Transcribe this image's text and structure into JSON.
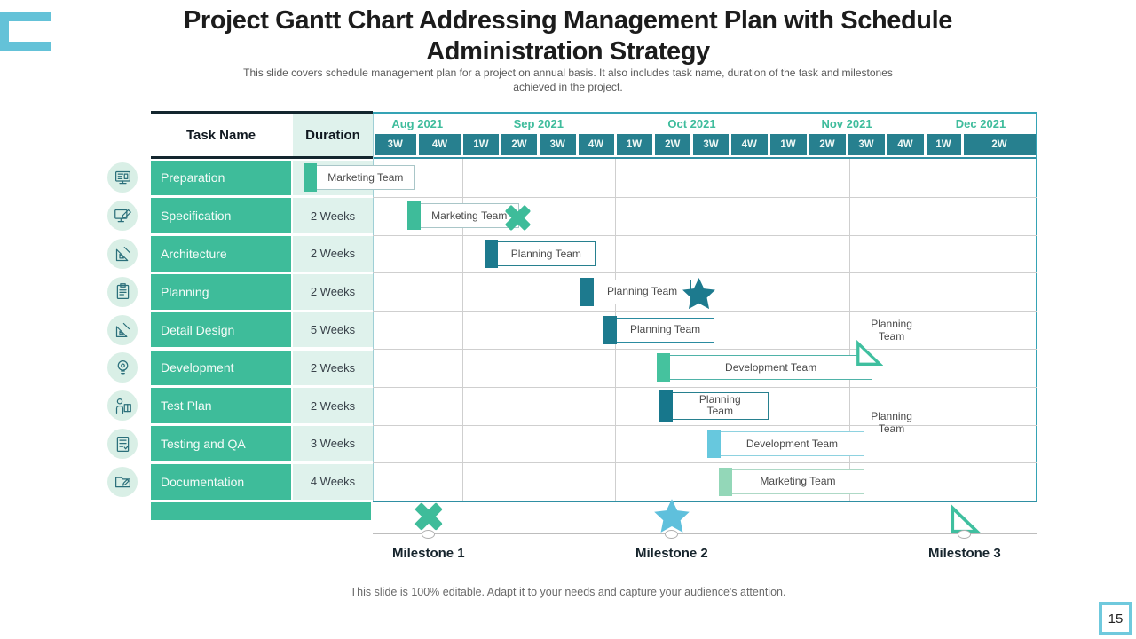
{
  "slide": {
    "title": "Project Gantt Chart Addressing Management Plan with Schedule Administration Strategy",
    "subtitle": "This slide covers schedule management plan for a project on annual basis. It also includes task name, duration of the task and milestones achieved in the project.",
    "footer_note": "This slide is 100% editable. Adapt it to your needs and capture your audience's attention.",
    "page_number": "15"
  },
  "table_headers": {
    "task": "Task Name",
    "duration": "Duration"
  },
  "chart_data": {
    "type": "gantt",
    "timeline_months": [
      {
        "label": "Aug 2021",
        "weeks": [
          "3W",
          "4W"
        ]
      },
      {
        "label": "Sep 2021",
        "weeks": [
          "1W",
          "2W",
          "3W",
          "4W"
        ]
      },
      {
        "label": "Oct 2021",
        "weeks": [
          "1W",
          "2W",
          "3W",
          "4W"
        ]
      },
      {
        "label": "Nov 2021",
        "weeks": [
          "1W",
          "2W",
          "3W",
          "4W"
        ]
      },
      {
        "label": "Dec 2021",
        "weeks": [
          "1W",
          "2W"
        ]
      }
    ],
    "tasks": [
      {
        "name": "Preparation",
        "duration": "",
        "icon": "blueprint-monitor-icon",
        "team": "Marketing Team",
        "start_week": -1.8,
        "end_week": 1.1,
        "block_color": "#3ebc9a",
        "border_color": "#a9c6c8"
      },
      {
        "name": "Specification",
        "duration": "2 Weeks",
        "icon": "monitor-pencil-icon",
        "team": "Marketing Team",
        "start_week": 0.9,
        "end_week": 3.8,
        "block_color": "#3ebc9a",
        "border_color": "#a9c6c8",
        "end_marker": {
          "icon": "cross-icon",
          "color": "#3ebc9a"
        }
      },
      {
        "name": "Architecture",
        "duration": "2 Weeks",
        "icon": "set-square-icon",
        "team": "Planning Team",
        "start_week": 2.9,
        "end_week": 5.8,
        "block_color": "#1d7a8e",
        "border_color": "#27808f"
      },
      {
        "name": "Planning",
        "duration": "2 Weeks",
        "icon": "clipboard-icon",
        "team": "Planning Team",
        "start_week": 5.4,
        "end_week": 8.3,
        "block_color": "#1d7a8e",
        "border_color": "#27808f",
        "end_marker": {
          "icon": "star-icon",
          "color": "#1d7a8e"
        }
      },
      {
        "name": "Detail Design",
        "duration": "5 Weeks",
        "icon": "drafting-pencil-icon",
        "team": "Planning Team",
        "start_week": 6.0,
        "end_week": 8.9,
        "block_color": "#1d7a8e",
        "border_color": "#2a8ba0"
      },
      {
        "name": "Development",
        "duration": "2 Weeks",
        "icon": "bulb-gear-icon",
        "team": "Development Team",
        "start_week": 7.4,
        "end_week": 13.0,
        "block_color": "#45c29e",
        "border_color": "#4fb3a8",
        "end_marker": {
          "icon": "flag-icon",
          "color": "#3fbf9f"
        }
      },
      {
        "name": "Test Plan",
        "duration": "2 Weeks",
        "icon": "trainer-book-icon",
        "team": "Planning Team",
        "start_week": 7.45,
        "end_week": 10.3,
        "block_color": "#17778c",
        "border_color": "#27808f",
        "two_line_label": true
      },
      {
        "name": "Testing and QA",
        "duration": "3 Weeks",
        "icon": "checklist-document-icon",
        "team": "Development Team",
        "start_week": 8.7,
        "end_week": 12.8,
        "block_color": "#67c8de",
        "border_color": "#8ed2e0"
      },
      {
        "name": "Documentation",
        "duration": "4 Weeks",
        "icon": "folder-pencil-icon",
        "team": "Marketing Team",
        "start_week": 9.0,
        "end_week": 12.8,
        "block_color": "#93d7b8",
        "border_color": "#aed9c6"
      }
    ],
    "float_labels": [
      {
        "text": "Planning Team",
        "week_center": 13.5,
        "row": 4,
        "row_offset": 0
      },
      {
        "text": "Planning Team",
        "week_center": 13.5,
        "row": 6,
        "row_offset": 0.45
      }
    ],
    "milestones": [
      {
        "label": "Milestone 1",
        "icon": "cross-icon",
        "color": "#3ebc9a",
        "week": 1.45
      },
      {
        "label": "Milestone 2",
        "icon": "star-icon",
        "color": "#5fc0dc",
        "week": 7.78
      },
      {
        "label": "Milestone 3",
        "icon": "flag-icon",
        "color": "#3fbf9f",
        "week": 15.4
      }
    ]
  },
  "colors": {
    "task_cell": "#3ebc9a",
    "duration_cell": "#dff2ec",
    "week_cell": "#27808f",
    "month_text": "#3fbc9c",
    "accent_cyan": "#64c2d8",
    "grid_line": "#cfcfcf",
    "table_dark_line": "#13262e",
    "chart_edge": "#35a3b5",
    "icon_circle_bg": "#d9efe6",
    "icon_stroke": "#2a6f7a",
    "bar_text": "#4a4a4a",
    "footer_text": "#6a6a6a"
  }
}
